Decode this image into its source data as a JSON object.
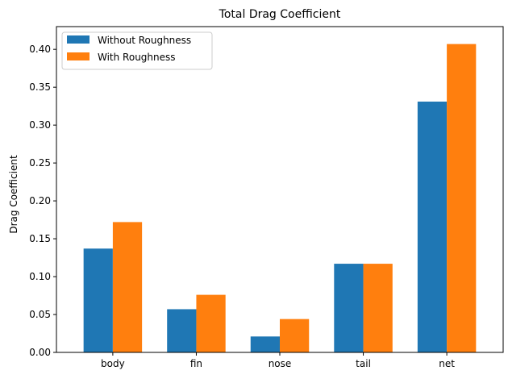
{
  "chart_data": {
    "type": "bar",
    "title": "Total Drag Coefficient",
    "xlabel": "",
    "ylabel": "Drag Coefficient",
    "categories": [
      "body",
      "fin",
      "nose",
      "tail",
      "net"
    ],
    "series": [
      {
        "name": "Without Roughness",
        "color": "#1f77b4",
        "values": [
          0.137,
          0.057,
          0.021,
          0.117,
          0.331
        ]
      },
      {
        "name": "With Roughness",
        "color": "#ff7f0e",
        "values": [
          0.172,
          0.076,
          0.044,
          0.117,
          0.407
        ]
      }
    ],
    "ylim": [
      0,
      0.43
    ],
    "yticks": [
      "0.00",
      "0.05",
      "0.10",
      "0.15",
      "0.20",
      "0.25",
      "0.30",
      "0.35",
      "0.40"
    ],
    "grid": false,
    "legend": "top-left"
  }
}
